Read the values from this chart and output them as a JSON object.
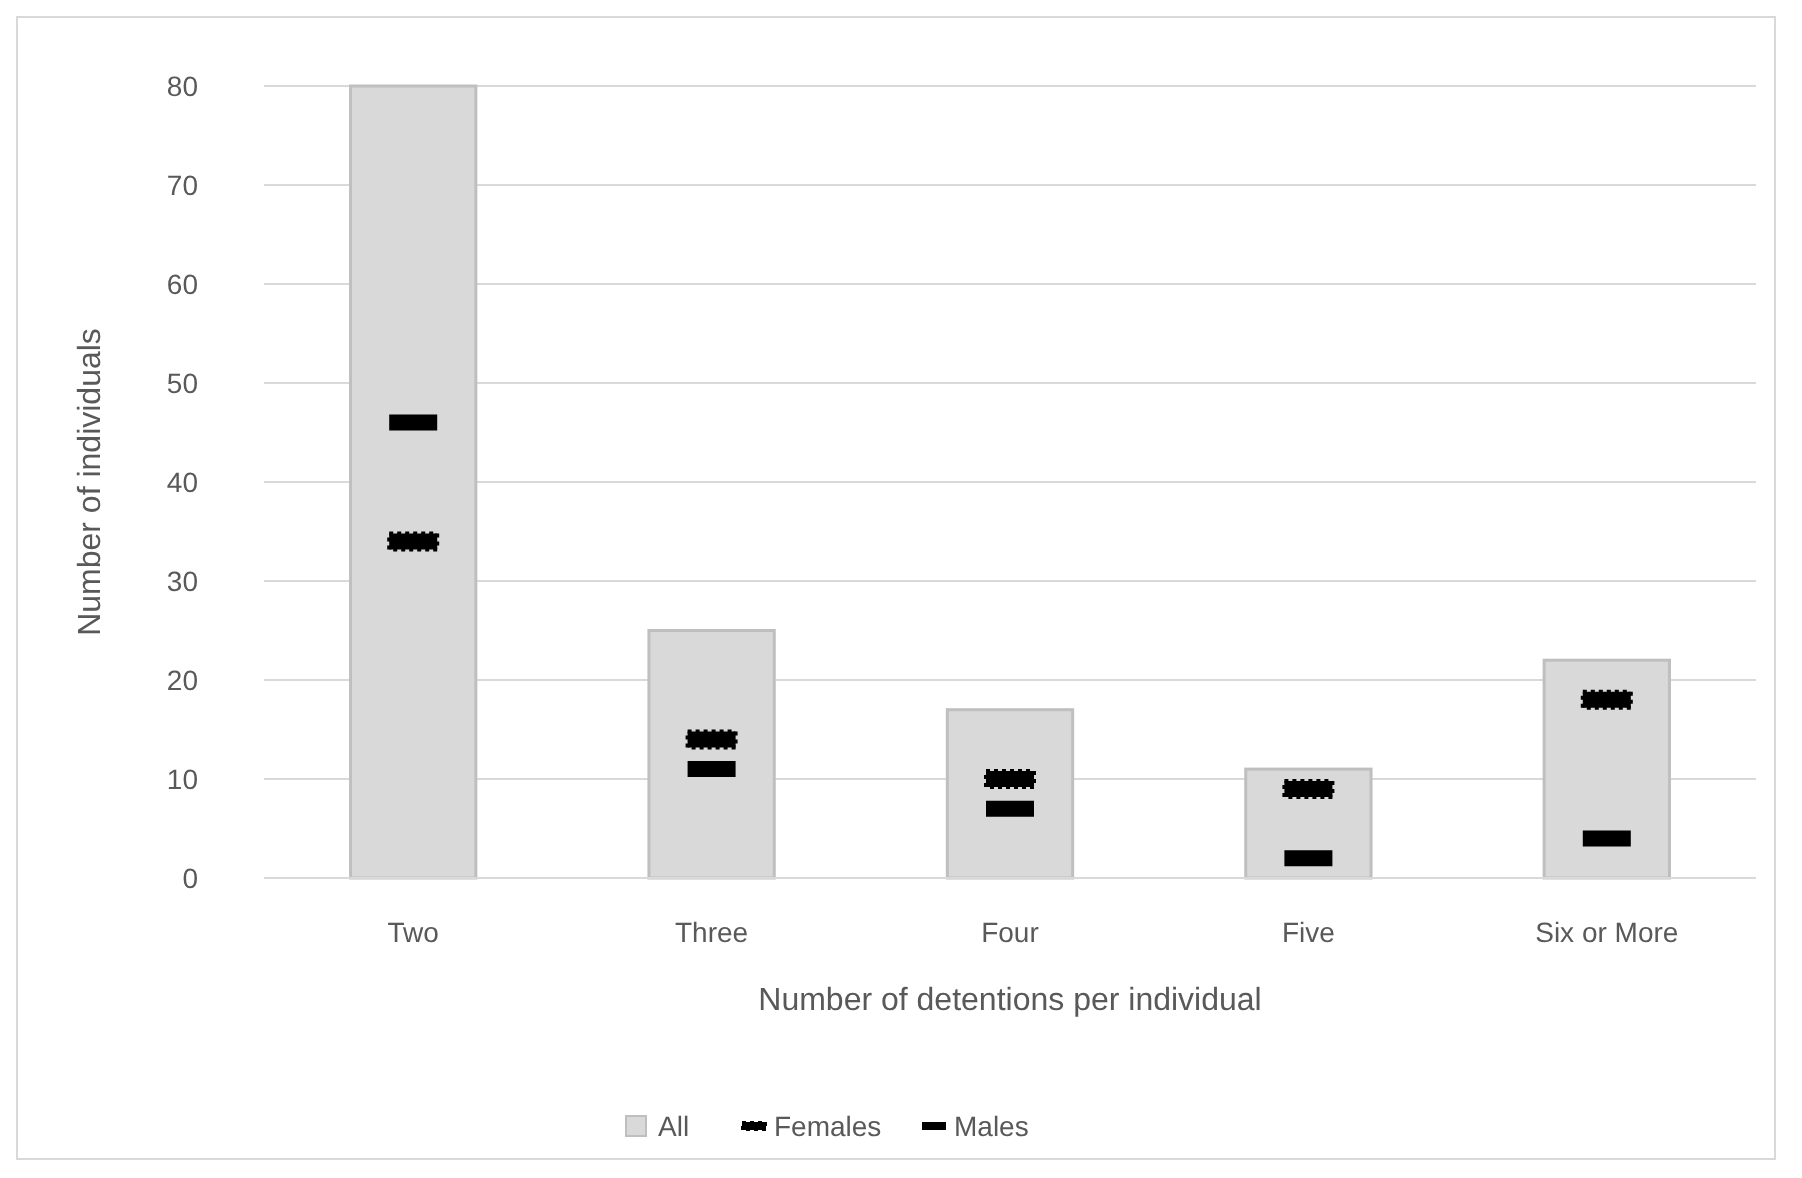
{
  "chart_data": {
    "type": "bar",
    "xlabel": "Number of detentions per individual",
    "ylabel": "Number of individuals",
    "categories": [
      "Two",
      "Three",
      "Four",
      "Five",
      "Six or More"
    ],
    "series": [
      {
        "name": "All",
        "color": "#d9d9d9",
        "values": [
          80,
          25,
          17,
          11,
          22
        ]
      },
      {
        "name": "Females",
        "type": "scatter",
        "color": "#000000",
        "values": [
          34,
          14,
          10,
          9,
          18
        ]
      },
      {
        "name": "Males",
        "type": "scatter",
        "color": "#000000",
        "values": [
          46,
          11,
          7,
          2,
          4
        ]
      }
    ],
    "ylim": [
      0,
      80
    ],
    "yticks": [
      0,
      10,
      20,
      30,
      40,
      50,
      60,
      70,
      80
    ],
    "grid": "y",
    "legend": "bottom"
  }
}
